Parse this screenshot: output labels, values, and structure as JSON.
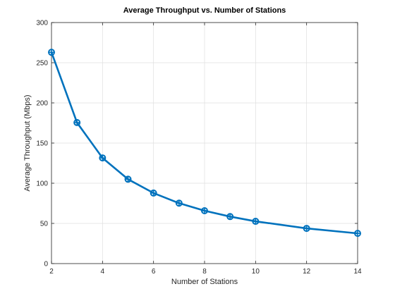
{
  "chart_data": {
    "type": "line",
    "title": "Average Throughput vs. Number of Stations",
    "xlabel": "Number of Stations",
    "ylabel": "Average Throughput (Mbps)",
    "xlim": [
      2,
      14
    ],
    "ylim": [
      0,
      300
    ],
    "xticks": [
      2,
      4,
      6,
      8,
      10,
      12,
      14
    ],
    "yticks": [
      0,
      50,
      100,
      150,
      200,
      250,
      300
    ],
    "grid": true,
    "series": [
      {
        "x": [
          2,
          3,
          4,
          5,
          6,
          7,
          8,
          9,
          10,
          12,
          14
        ],
        "y": [
          263,
          175.5,
          131.5,
          105,
          87.8,
          75.2,
          65.8,
          58.5,
          52.6,
          43.8,
          37.6
        ],
        "color": "#0072BD",
        "marker": "circle-plus"
      }
    ]
  }
}
